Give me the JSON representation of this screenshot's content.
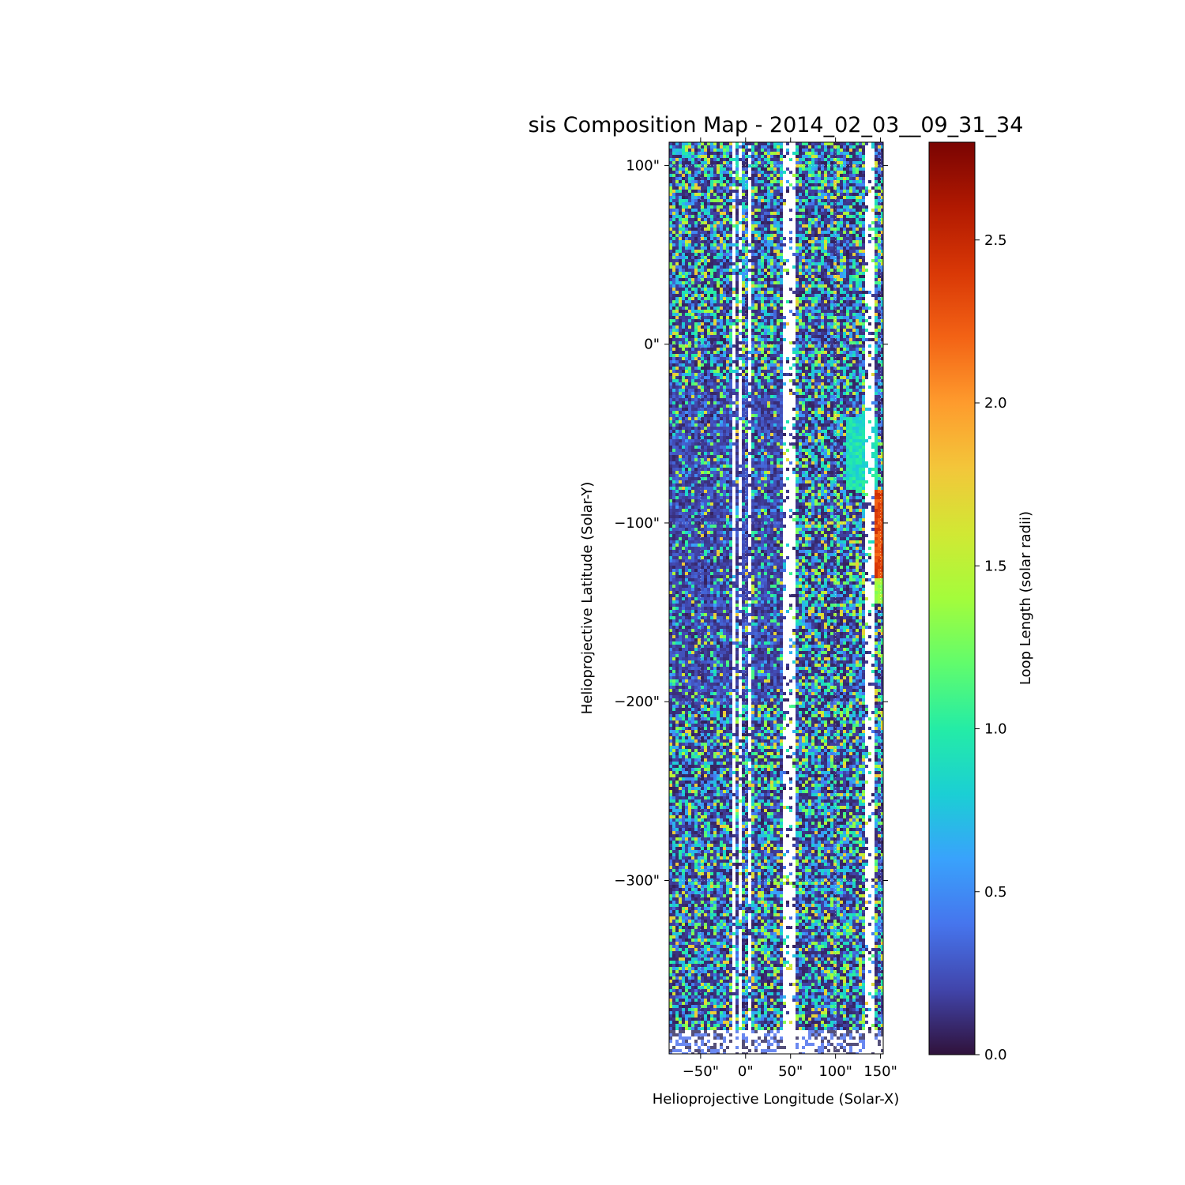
{
  "chart_data": {
    "type": "heatmap",
    "title": "sis Composition Map - 2014_02_03__09_31_34",
    "xlabel": "Helioprojective Longitude (Solar-X)",
    "ylabel": "Helioprojective Latitude (Solar-Y)",
    "x_range": [
      -85,
      153
    ],
    "y_range": [
      -397,
      113
    ],
    "x_ticks": [
      {
        "value": -50,
        "label": "−50\""
      },
      {
        "value": 0,
        "label": "0\""
      },
      {
        "value": 50,
        "label": "50\""
      },
      {
        "value": 100,
        "label": "100\""
      },
      {
        "value": 150,
        "label": "150\""
      }
    ],
    "y_ticks": [
      {
        "value": 100,
        "label": "100\""
      },
      {
        "value": 0,
        "label": "0\""
      },
      {
        "value": -100,
        "label": "−100\""
      },
      {
        "value": -200,
        "label": "−200\""
      },
      {
        "value": -300,
        "label": "−300\""
      }
    ],
    "grid": true,
    "colorbar": {
      "label": "Loop Length (solar radii)",
      "range": [
        0,
        2.8
      ],
      "colormap": "turbo",
      "ticks": [
        {
          "value": 0.0,
          "label": "0.0"
        },
        {
          "value": 0.5,
          "label": "0.5"
        },
        {
          "value": 1.0,
          "label": "1.0"
        },
        {
          "value": 1.5,
          "label": "1.5"
        },
        {
          "value": 2.0,
          "label": "2.0"
        },
        {
          "value": 2.5,
          "label": "2.5"
        }
      ],
      "stops": [
        "#30123b",
        "#4145ab",
        "#4675ed",
        "#39a2fc",
        "#1bcfd4",
        "#24eca6",
        "#61fc6c",
        "#a4fc3b",
        "#d1e834",
        "#f3c63a",
        "#fe9b2d",
        "#f36315",
        "#d93806",
        "#b11901",
        "#7a0402"
      ]
    },
    "gaps_x": [
      {
        "x": [
          -15,
          -13
        ]
      },
      {
        "x": [
          -8,
          -6
        ]
      },
      {
        "x": [
          2,
          4
        ]
      },
      {
        "x": [
          39,
          54
        ]
      },
      {
        "x": [
          130,
          143
        ]
      }
    ],
    "highlight_regions": [
      {
        "x": [
          140,
          153
        ],
        "y": [
          -80,
          -130
        ],
        "value": 2.3
      },
      {
        "x": [
          140,
          153
        ],
        "y": [
          -130,
          -145
        ],
        "value": 1.4
      },
      {
        "x": [
          110,
          145
        ],
        "y": [
          -40,
          -80
        ],
        "value": 0.9
      }
    ]
  }
}
